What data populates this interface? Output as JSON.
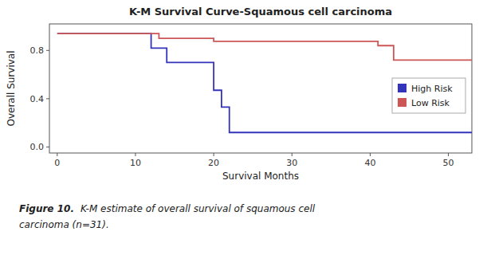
{
  "chart_data": {
    "type": "step",
    "title": "K-M Survival Curve-Squamous cell carcinoma",
    "x_label": "Survival Months",
    "y_label": "Overall Survival",
    "xlim": [
      -1,
      53
    ],
    "ylim": [
      -0.05,
      1.02
    ],
    "xticks": [
      0,
      10,
      20,
      30,
      40,
      50
    ],
    "yticks": [
      {
        "value": 0.0,
        "label": "0.0"
      },
      0.4,
      0.8
    ],
    "legend": "lower right",
    "series": [
      {
        "name": "High Risk",
        "color": "#3333bb",
        "x": [
          0,
          12,
          12,
          14,
          14,
          20,
          20,
          21,
          21,
          22,
          22,
          26,
          26,
          53
        ],
        "values": [
          0.94,
          0.94,
          0.82,
          0.82,
          0.7,
          0.7,
          0.47,
          0.47,
          0.33,
          0.33,
          0.12,
          0.12,
          0.12,
          0.12
        ]
      },
      {
        "name": "Low Risk",
        "color": "#cc5555",
        "x": [
          0,
          13,
          13,
          20,
          20,
          22,
          22,
          41,
          41,
          43,
          43,
          53
        ],
        "values": [
          0.94,
          0.94,
          0.9,
          0.9,
          0.875,
          0.875,
          0.875,
          0.875,
          0.84,
          0.84,
          0.72,
          0.72
        ]
      }
    ],
    "caption": [
      "Figure 10.",
      "K-M estimate of overall survival of squamous cell",
      "carcinoma (n=31)."
    ]
  }
}
